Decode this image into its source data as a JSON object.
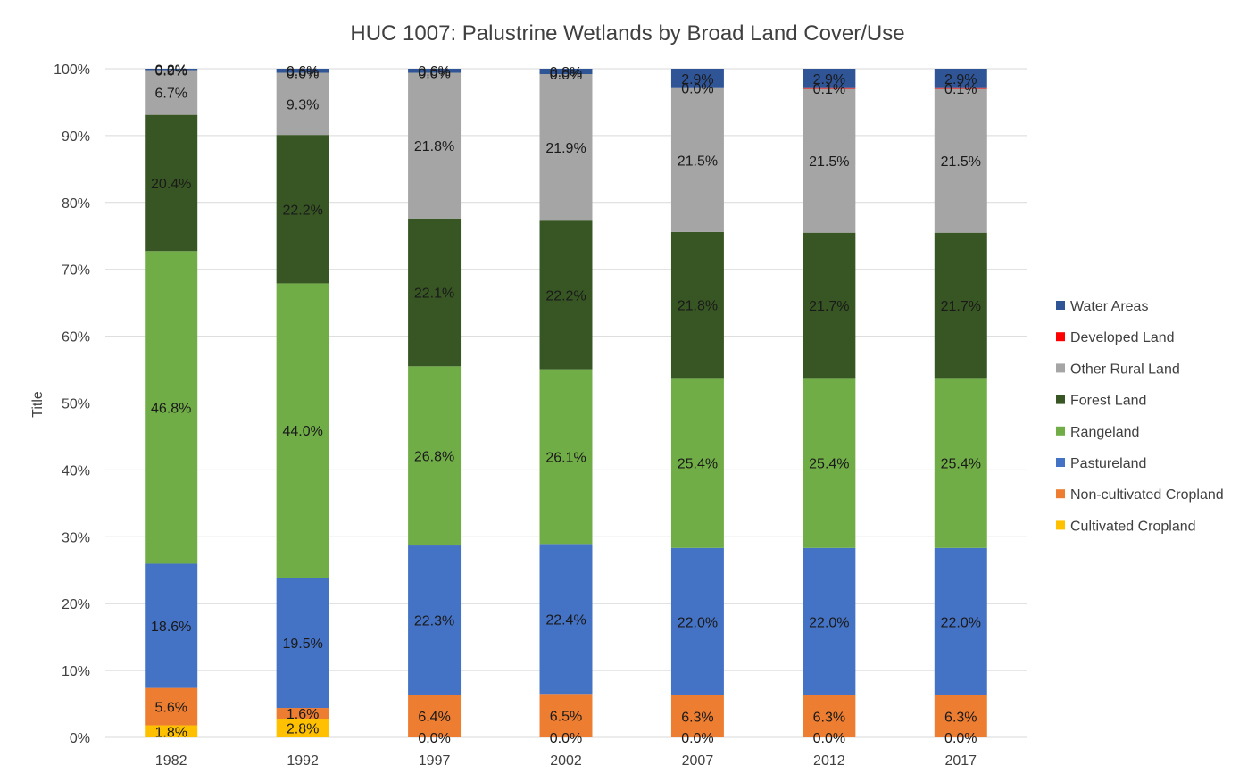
{
  "chart_data": {
    "type": "bar",
    "stacked": true,
    "percent_stacked": true,
    "title": "HUC 1007: Palustrine Wetlands by Broad Land Cover/Use",
    "ylabel": "Title",
    "xlabel": "",
    "ylim": [
      0,
      100
    ],
    "yticks": [
      "0%",
      "10%",
      "20%",
      "30%",
      "40%",
      "50%",
      "60%",
      "70%",
      "80%",
      "90%",
      "100%"
    ],
    "categories": [
      "1982",
      "1992",
      "1997",
      "2002",
      "2007",
      "2012",
      "2017"
    ],
    "grid": true,
    "legend_position": "right",
    "series": [
      {
        "name": "Cultivated Cropland",
        "color": "#FFC000",
        "values": [
          1.8,
          2.8,
          0.0,
          0.0,
          0.0,
          0.0,
          0.0
        ],
        "labels": [
          "1.8%",
          "2.8%",
          "0.0%",
          "0.0%",
          "0.0%",
          "0.0%",
          "0.0%"
        ]
      },
      {
        "name": "Non-cultivated Cropland",
        "color": "#ED7D31",
        "values": [
          5.6,
          1.6,
          6.4,
          6.5,
          6.3,
          6.3,
          6.3
        ],
        "labels": [
          "5.6%",
          "1.6%",
          "6.4%",
          "6.5%",
          "6.3%",
          "6.3%",
          "6.3%"
        ]
      },
      {
        "name": "Pastureland",
        "color": "#4472C4",
        "values": [
          18.6,
          19.5,
          22.3,
          22.4,
          22.0,
          22.0,
          22.0
        ],
        "labels": [
          "18.6%",
          "19.5%",
          "22.3%",
          "22.4%",
          "22.0%",
          "22.0%",
          "22.0%"
        ]
      },
      {
        "name": "Rangeland",
        "color": "#70AD47",
        "values": [
          46.8,
          44.0,
          26.8,
          26.1,
          25.4,
          25.4,
          25.4
        ],
        "labels": [
          "46.8%",
          "44.0%",
          "26.8%",
          "26.1%",
          "25.4%",
          "25.4%",
          "25.4%"
        ]
      },
      {
        "name": "Forest Land",
        "color": "#375623",
        "values": [
          20.4,
          22.2,
          22.1,
          22.2,
          21.8,
          21.7,
          21.7
        ],
        "labels": [
          "20.4%",
          "22.2%",
          "22.1%",
          "22.2%",
          "21.8%",
          "21.7%",
          "21.7%"
        ]
      },
      {
        "name": "Other Rural Land",
        "color": "#A5A5A5",
        "values": [
          6.7,
          9.3,
          21.8,
          21.9,
          21.5,
          21.5,
          21.5
        ],
        "labels": [
          "6.7%",
          "9.3%",
          "21.8%",
          "21.9%",
          "21.5%",
          "21.5%",
          "21.5%"
        ]
      },
      {
        "name": "Developed Land",
        "color": "#FF0000",
        "values": [
          0.0,
          0.0,
          0.0,
          0.0,
          0.0,
          0.1,
          0.1
        ],
        "labels": [
          "0.0%",
          "0.0%",
          "0.0%",
          "0.0%",
          "0.0%",
          "0.1%",
          "0.1%"
        ]
      },
      {
        "name": "Water Areas",
        "color": "#2F5597",
        "values": [
          0.2,
          0.6,
          0.6,
          0.8,
          2.9,
          2.9,
          2.9
        ],
        "labels": [
          "0.2%",
          "0.6%",
          "0.6%",
          "0.8%",
          "2.9%",
          "2.9%",
          "2.9%"
        ]
      }
    ]
  }
}
